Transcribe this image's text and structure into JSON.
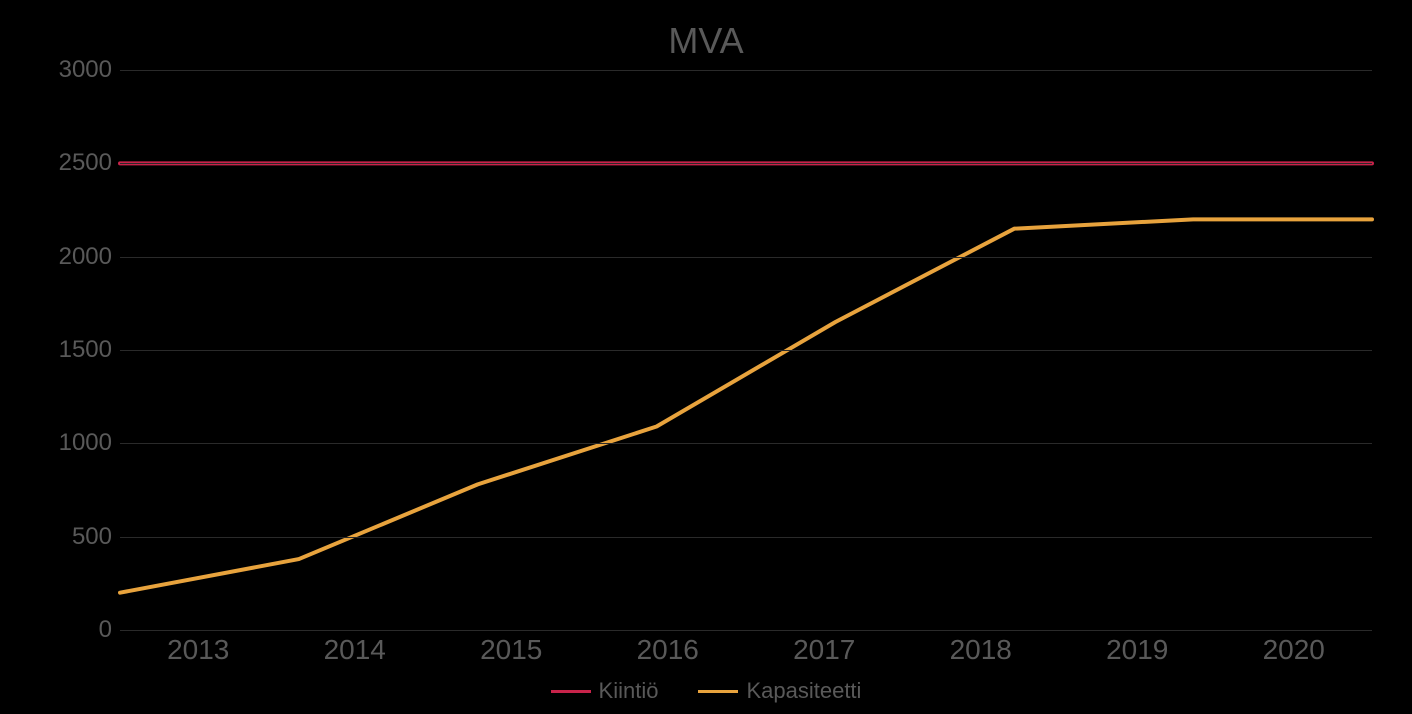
{
  "chart": {
    "type": "line",
    "title": "MVA",
    "title_color": "#595959",
    "title_fontsize": 36,
    "background_color": "#000000",
    "axis_label_color": "#595959",
    "axis_fontsize": 24,
    "x_axis_fontsize": 28,
    "grid_color": "#2a2a2a",
    "ylim": [
      0,
      3000
    ],
    "ytick_step": 500,
    "yticks": [
      0,
      500,
      1000,
      1500,
      2000,
      2500,
      3000
    ],
    "categories": [
      "2013",
      "2014",
      "2015",
      "2016",
      "2017",
      "2018",
      "2019",
      "2020"
    ],
    "series": [
      {
        "name": "Kiintiö",
        "color": "#c8234a",
        "line_width": 4,
        "values": [
          2500,
          2500,
          2500,
          2500,
          2500,
          2500,
          2500,
          2500
        ]
      },
      {
        "name": "Kapasiteetti",
        "color": "#e8a33d",
        "line_width": 4,
        "values": [
          200,
          380,
          780,
          1090,
          1650,
          2150,
          2200,
          2200
        ]
      }
    ],
    "legend": {
      "position": "bottom",
      "fontsize": 22,
      "color": "#595959"
    }
  }
}
